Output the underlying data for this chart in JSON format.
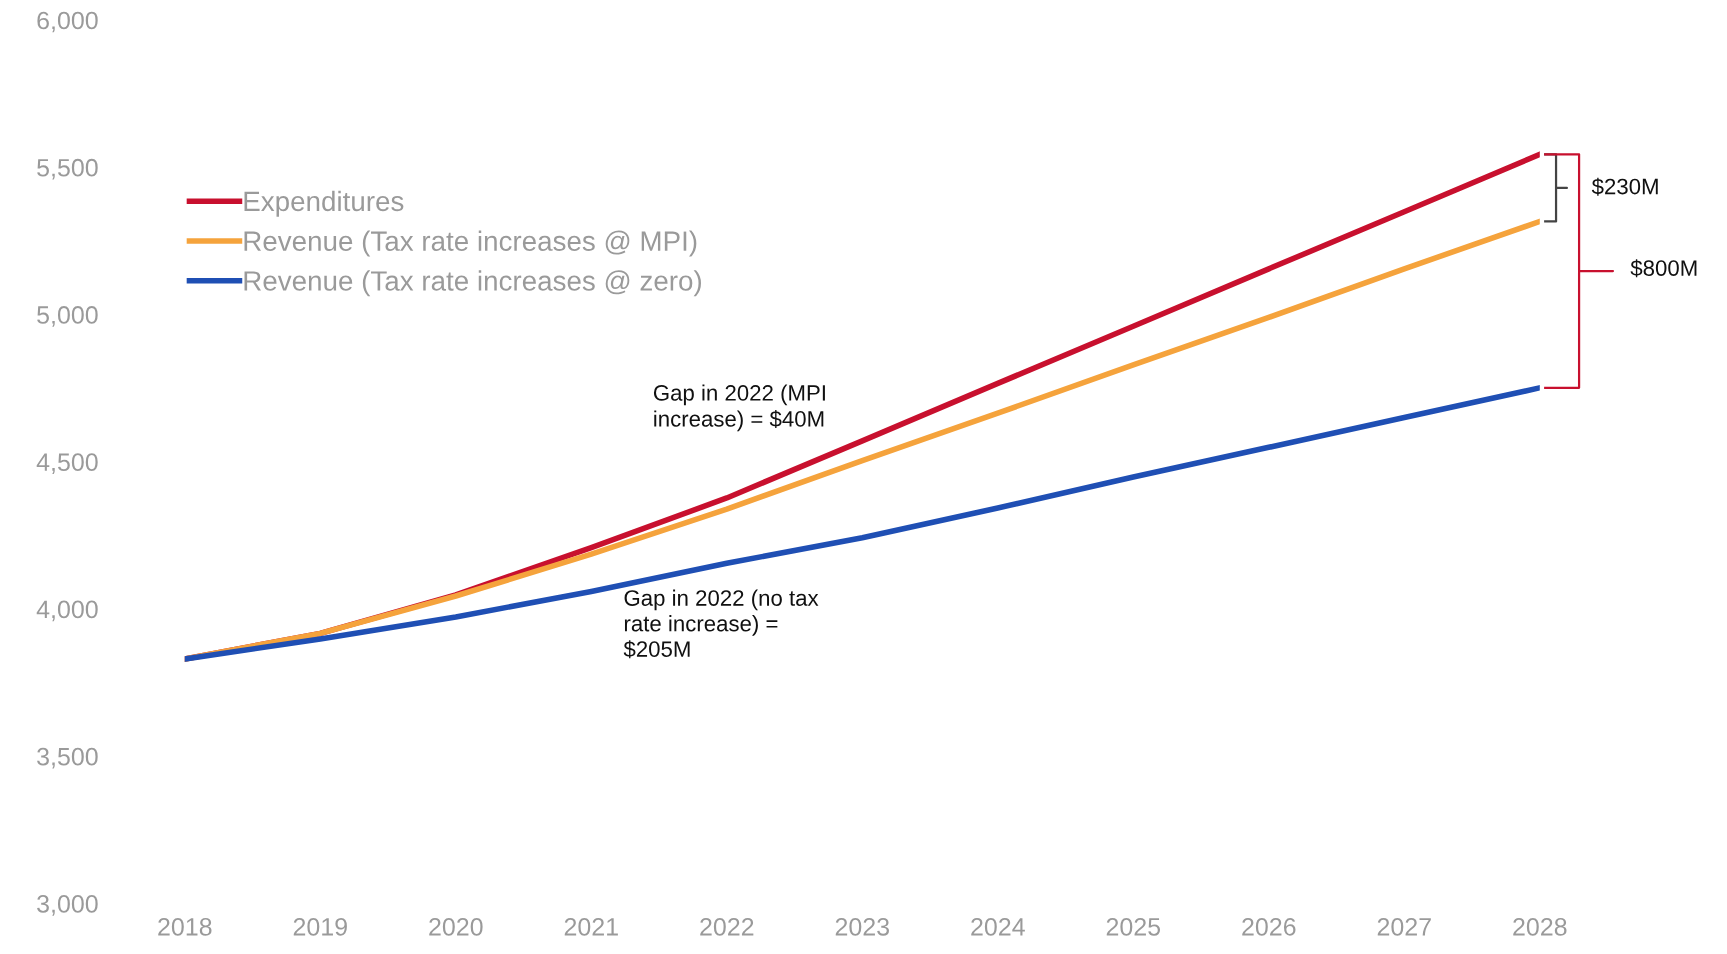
{
  "chart_data": {
    "type": "line",
    "x": [
      2018,
      2019,
      2020,
      2021,
      2022,
      2023,
      2024,
      2025,
      2026,
      2027,
      2028
    ],
    "series": [
      {
        "name": "Expenditures",
        "color": "#c8102e",
        "values": [
          3830,
          3917,
          4048,
          4208,
          4377,
          4571,
          4766,
          4960,
          5155,
          5349,
          5544
        ]
      },
      {
        "name": "Revenue (Tax rate increases @ MPI)",
        "color": "#f5a33c",
        "values": [
          3830,
          3917,
          4044,
          4186,
          4339,
          4504,
          4665,
          4829,
          4990,
          5155,
          5316
        ]
      },
      {
        "name": "Revenue (Tax rate increases @ zero)",
        "color": "#1f4fb4",
        "values": [
          3830,
          3898,
          3973,
          4059,
          4155,
          4242,
          4343,
          4448,
          4549,
          4650,
          4751
        ]
      }
    ],
    "xlim": [
      2018,
      2028
    ],
    "ylim": [
      3000,
      6000
    ],
    "xticks": [
      2018,
      2019,
      2020,
      2021,
      2022,
      2023,
      2024,
      2025,
      2026,
      2027,
      2028
    ],
    "yticks": [
      {
        "value": 3000,
        "label": "3,000"
      },
      {
        "value": 3500,
        "label": "3,500"
      },
      {
        "value": 4000,
        "label": "4,000"
      },
      {
        "value": 4500,
        "label": "4,500"
      },
      {
        "value": 5000,
        "label": "5,000"
      },
      {
        "value": 5500,
        "label": "5,500"
      },
      {
        "value": 6000,
        "label": "6,000"
      }
    ],
    "annotations": [
      "Gap in 2022 (MPI\nincrease) = $40M",
      "Gap in 2022 (no tax\nrate increase) =\n$205M",
      "$230M",
      "$800M"
    ],
    "legend": "top left",
    "grid": false,
    "marker": "none",
    "line_style": "solid"
  }
}
